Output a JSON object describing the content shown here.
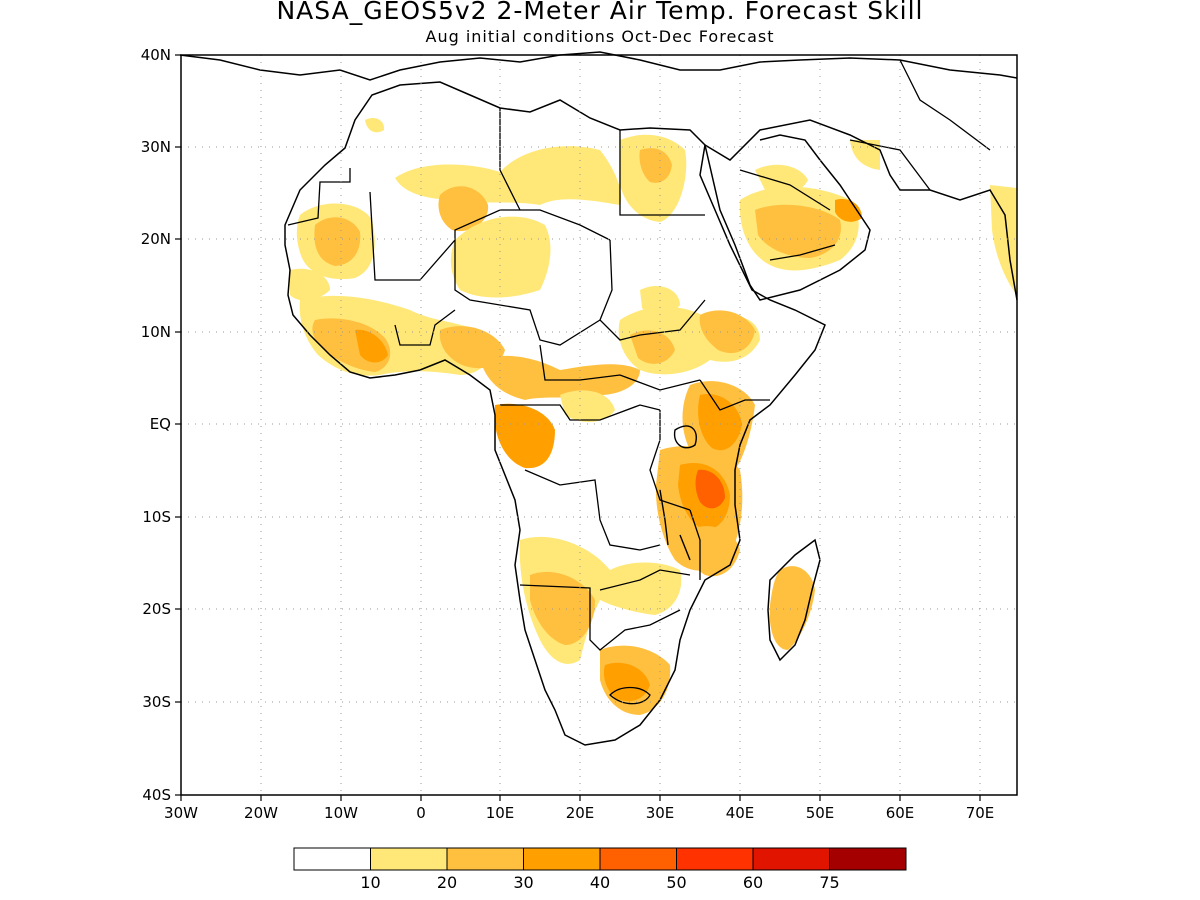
{
  "title": "NASA_GEOS5v2 2-Meter Air Temp. Forecast Skill",
  "subtitle": "Aug initial conditions  Oct-Dec Forecast",
  "axes": {
    "lat_labels": [
      "40N",
      "30N",
      "20N",
      "10N",
      "EQ",
      "10S",
      "20S",
      "30S",
      "40S"
    ],
    "lon_labels": [
      "30W",
      "20W",
      "10W",
      "0",
      "10E",
      "20E",
      "30E",
      "40E",
      "50E",
      "60E",
      "70E"
    ]
  },
  "legend": {
    "colors": [
      "#ffffff",
      "#ffe878",
      "#ffc040",
      "#ffa000",
      "#ff6000",
      "#ff3200",
      "#e11400",
      "#a50000"
    ],
    "labels": [
      "10",
      "20",
      "30",
      "40",
      "50",
      "60",
      "75"
    ]
  }
}
